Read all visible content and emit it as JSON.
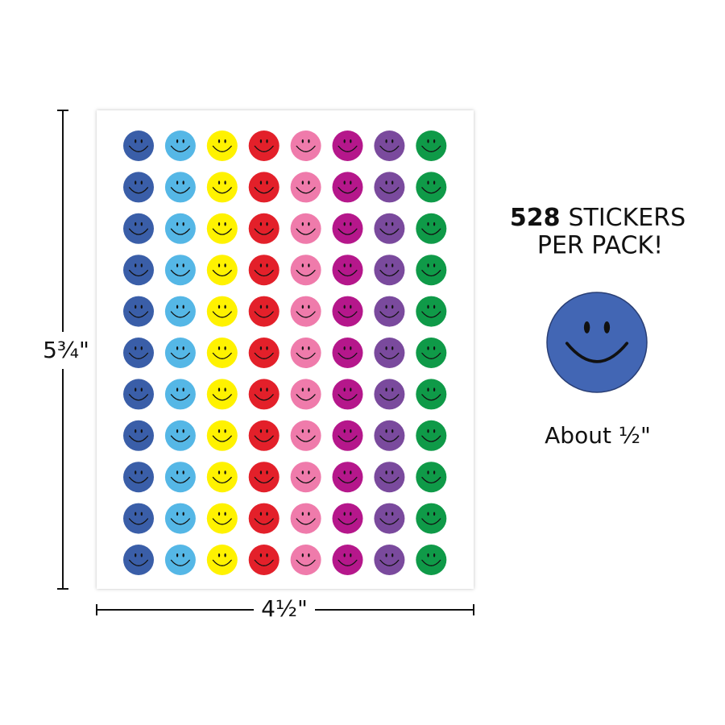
{
  "dimensions": {
    "height": "5¾\"",
    "width": "4½\""
  },
  "headline": {
    "count": "528",
    "line1": "STICKERS",
    "line2": "PER PACK!"
  },
  "caption": "About ½\""
}
